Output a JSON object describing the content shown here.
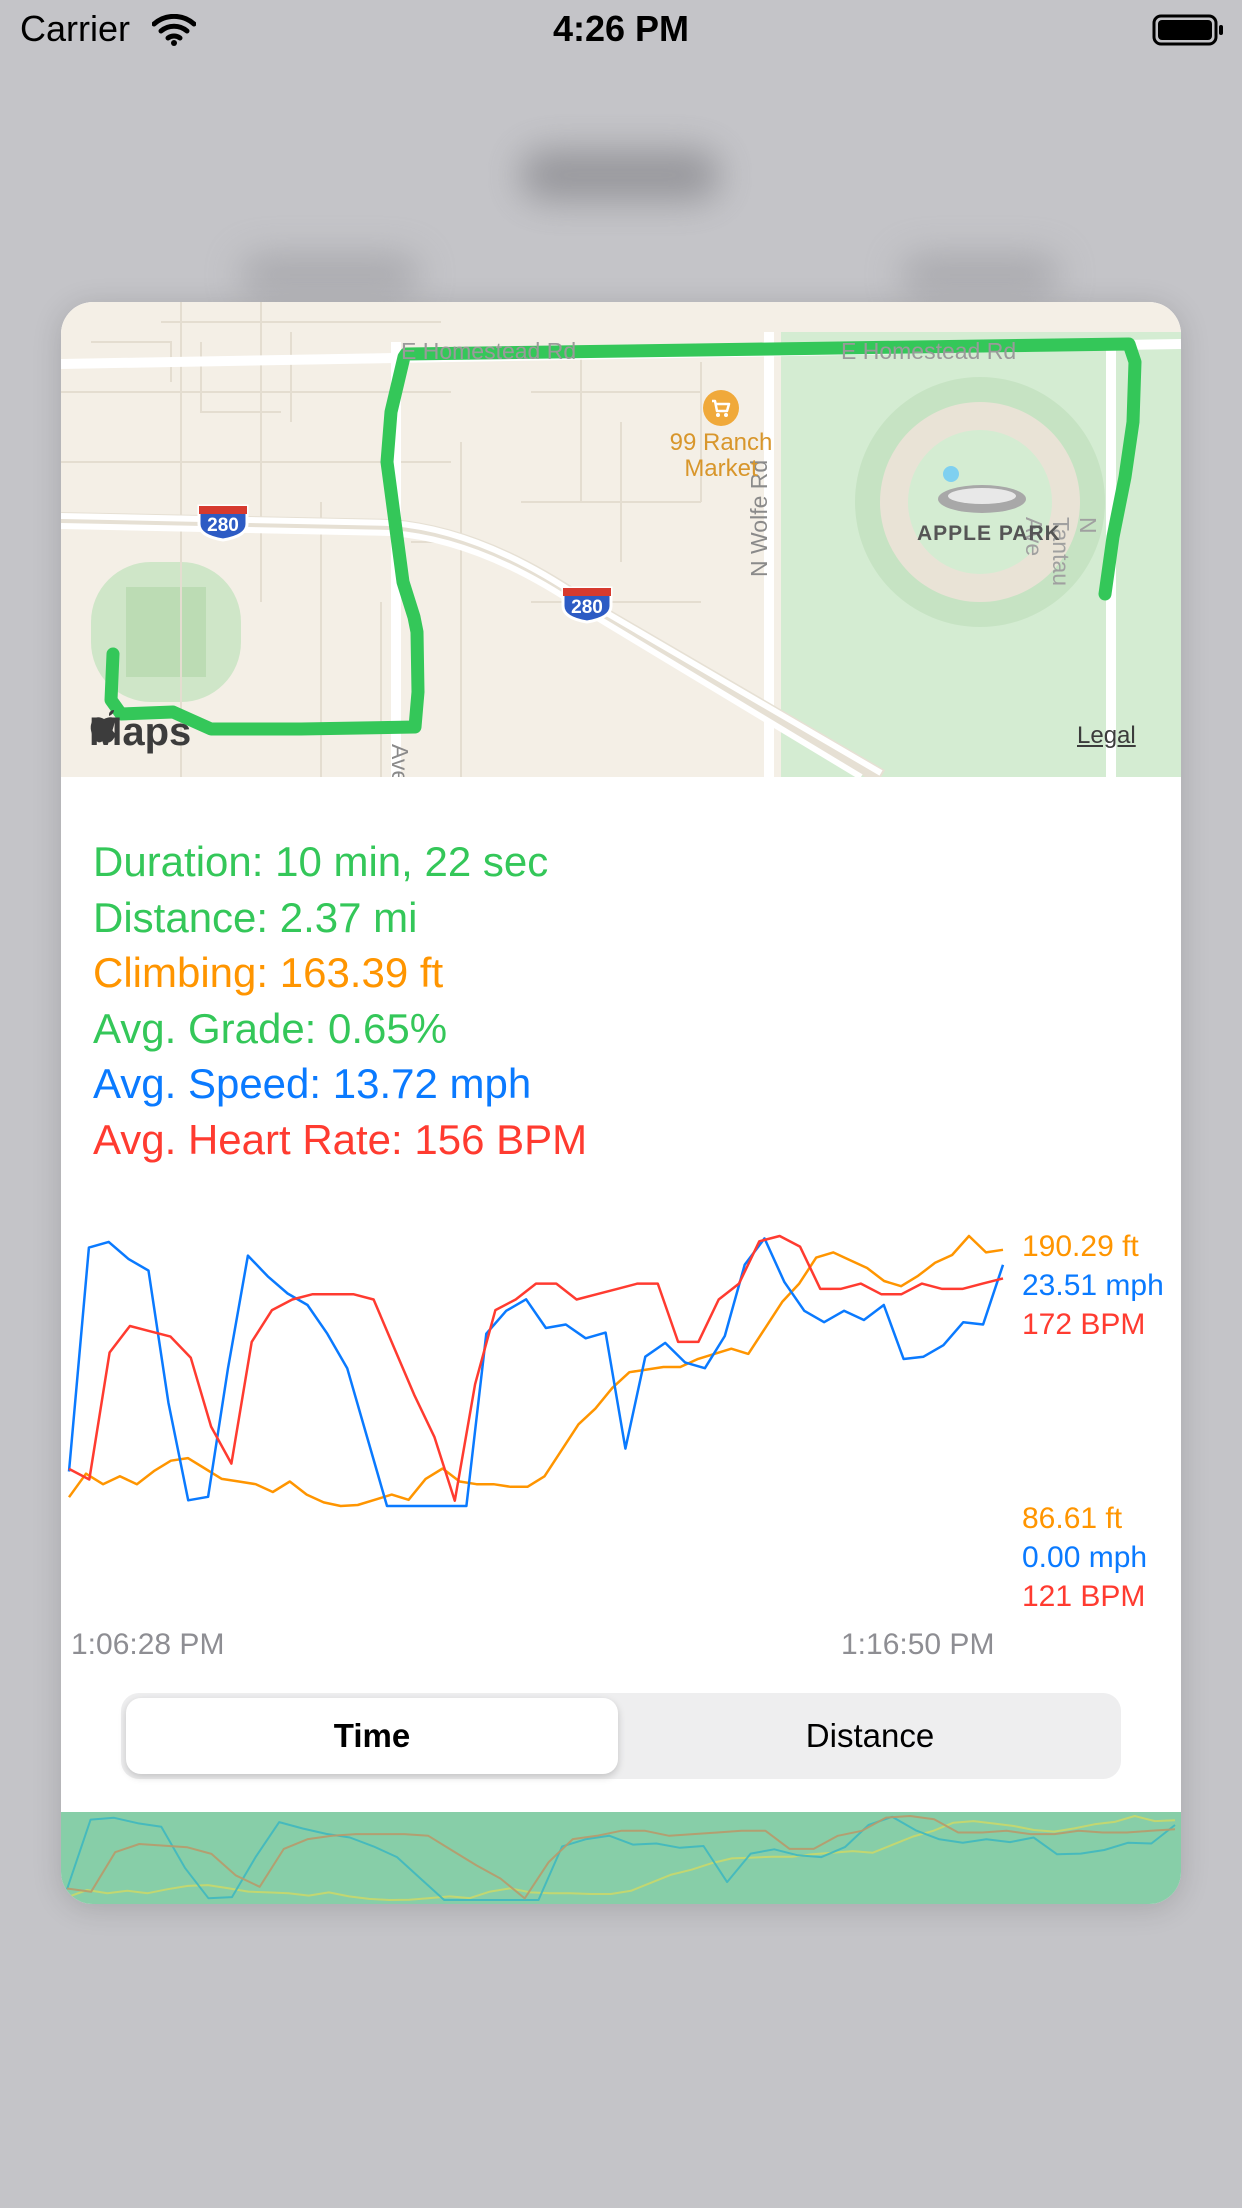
{
  "status_bar": {
    "carrier": "Carrier",
    "time": "4:26 PM"
  },
  "map": {
    "street_labels": [
      "E Homestead Rd",
      "N Wolfe Rd",
      "N Tantau Ave",
      "Ave"
    ],
    "poi": {
      "name": "99 Ranch\nMarket",
      "icon": "shopping-cart-icon"
    },
    "landmark": "APPLE PARK",
    "highway_shield": "280",
    "maps_logo": "Maps",
    "legal": "Legal",
    "route_color": "#34c759"
  },
  "stats": {
    "duration": "Duration: 10 min, 22 sec",
    "distance": "Distance: 2.37 mi",
    "climbing": "Climbing: 163.39 ft",
    "avg_grade": "Avg. Grade: 0.65%",
    "avg_speed": "Avg. Speed: 13.72 mph",
    "avg_heart_rate": "Avg. Heart Rate: 156 BPM"
  },
  "colors": {
    "green": "#34c759",
    "orange": "#ff9500",
    "blue": "#0a7aff",
    "red": "#ff3b30"
  },
  "chart_legend": {
    "max_elevation": "190.29 ft",
    "max_speed": "23.51 mph",
    "max_heart_rate": "172 BPM",
    "min_elevation": "86.61 ft",
    "min_speed": "0.00 mph",
    "min_heart_rate": "121 BPM",
    "start_time": "1:06:28 PM",
    "end_time": "1:16:50 PM"
  },
  "chart_data": {
    "type": "line",
    "x_range": [
      "1:06:28 PM",
      "1:16:50 PM"
    ],
    "series": [
      {
        "color": "#ff9500",
        "unit": "ft",
        "range": [
          86.61,
          190.29
        ],
        "values": [
          90,
          99,
          95,
          98,
          95,
          100,
          104,
          105,
          101,
          97,
          96,
          95,
          92,
          96,
          91,
          88,
          86.6,
          87,
          89,
          91,
          89,
          97,
          101,
          96,
          95,
          95,
          94,
          94,
          98,
          108,
          118,
          124,
          132,
          138,
          139,
          140,
          140,
          143,
          145,
          147,
          145,
          155,
          165,
          172,
          182,
          184,
          181,
          178,
          173,
          171,
          175,
          180,
          183,
          190.3,
          184,
          185
        ]
      },
      {
        "color": "#0a7aff",
        "unit": "mph",
        "range": [
          0,
          23.51
        ],
        "values": [
          3,
          22.5,
          23,
          21.5,
          20.5,
          9,
          0.5,
          0.8,
          12,
          21.8,
          20,
          18.5,
          17.5,
          15,
          12,
          6,
          0,
          0,
          0,
          0,
          0,
          15,
          17,
          18,
          15.5,
          15.8,
          14.6,
          15.1,
          5,
          13,
          14.2,
          12.5,
          12,
          14.8,
          21,
          23.3,
          19.5,
          17,
          16,
          17,
          16.2,
          17.5,
          12.8,
          13,
          14,
          16,
          15.8,
          21
        ]
      },
      {
        "color": "#ff3b30",
        "unit": "BPM",
        "range": [
          121,
          172
        ],
        "values": [
          128,
          126,
          150,
          155,
          154,
          153,
          149,
          136,
          129,
          152,
          158,
          160,
          161,
          161,
          161,
          160,
          151,
          142,
          134,
          122,
          144,
          158,
          160,
          163,
          163,
          160,
          161,
          162,
          163,
          163,
          152,
          152,
          160,
          163,
          171,
          172,
          170,
          162,
          162,
          163,
          161,
          161,
          163,
          162,
          162,
          163,
          164
        ]
      }
    ]
  },
  "segmented_control": {
    "time_label": "Time",
    "distance_label": "Distance",
    "selected": "Time"
  }
}
